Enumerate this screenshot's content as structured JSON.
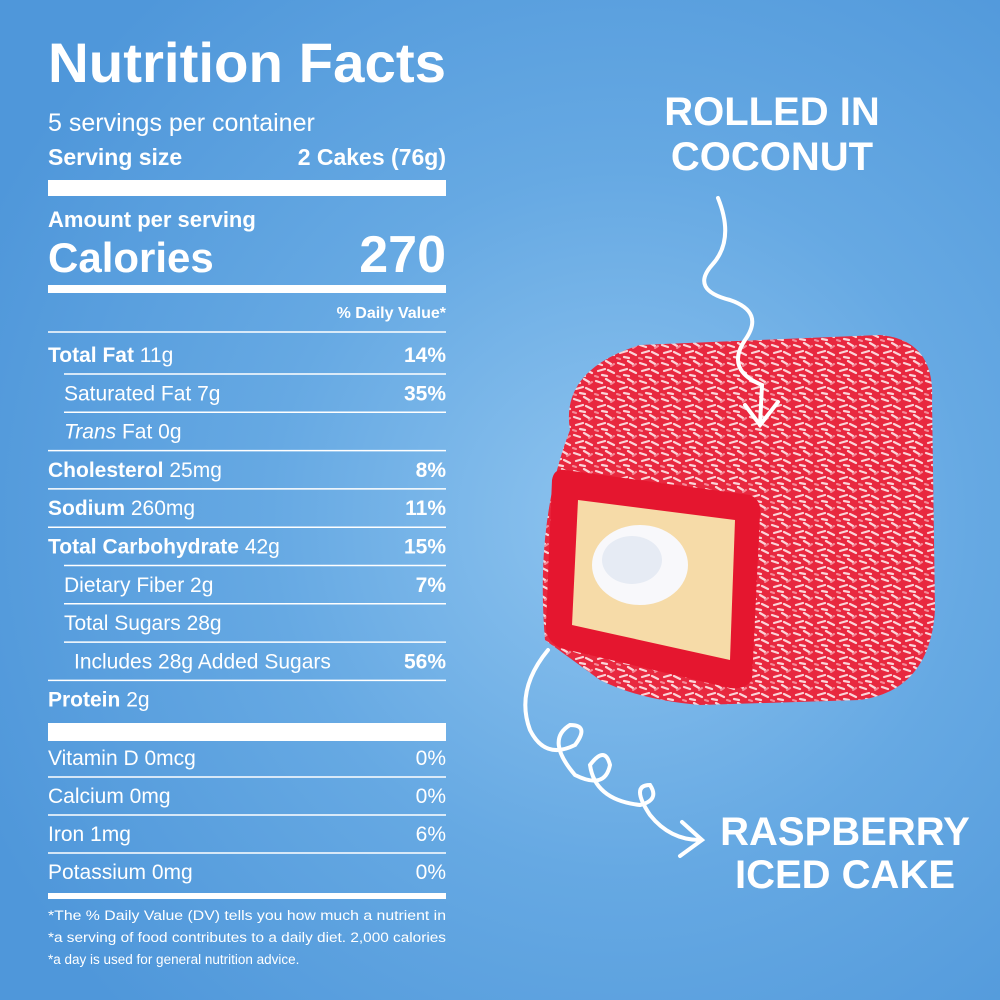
{
  "label": {
    "title": "Nutrition Facts",
    "servings": "5 servings per container",
    "serving_size_label": "Serving size",
    "serving_size": "2 Cakes (76g)",
    "amount_per_serving": "Amount per serving",
    "calories_label": "Calories",
    "calories": 270,
    "daily_value_header": "% Daily Value*",
    "nutrients": [
      {
        "name": "Total Fat",
        "amount": "11g",
        "dv": "14%",
        "bold": true,
        "indent": 0
      },
      {
        "name": "Saturated Fat",
        "amount": "7g",
        "dv": "35%",
        "bold": false,
        "indent": 1
      },
      {
        "name_italic": "Trans",
        "name": "Fat",
        "amount": "0g",
        "bold": false,
        "indent": 1
      },
      {
        "name": "Cholesterol",
        "amount": "25mg",
        "dv": "8%",
        "bold": true,
        "indent": 0
      },
      {
        "name": "Sodium",
        "amount": "260mg",
        "dv": "11%",
        "bold": true,
        "indent": 0
      },
      {
        "name": "Total Carbohydrate",
        "amount": "42g",
        "dv": "15%",
        "bold": true,
        "indent": 0
      },
      {
        "name": "Dietary Fiber",
        "amount": "2g",
        "dv": "7%",
        "bold": false,
        "indent": 1
      },
      {
        "name": "Total Sugars",
        "amount": "28g",
        "bold": false,
        "indent": 1
      },
      {
        "name": "Includes 28g Added Sugars",
        "dv": "56%",
        "bold": false,
        "indent": 2
      },
      {
        "name": "Protein",
        "amount": "2g",
        "bold": true,
        "indent": 0
      }
    ],
    "vitamins": [
      {
        "name": "Vitamin D 0mcg",
        "dv": "0%"
      },
      {
        "name": "Calcium 0mg",
        "dv": "0%"
      },
      {
        "name": "Iron 1mg",
        "dv": "6%"
      },
      {
        "name": "Potassium 0mg",
        "dv": "0%"
      }
    ],
    "footnote": [
      "*The % Daily Value (DV) tells you how much a nutrient in",
      "*a serving of food contributes to a daily diet. 2,000 calories",
      "*a day is used for general nutrition advice."
    ]
  },
  "callouts": {
    "top": [
      "ROLLED IN",
      "COCONUT"
    ],
    "bottom": [
      "RASPBERRY",
      "ICED CAKE"
    ]
  }
}
